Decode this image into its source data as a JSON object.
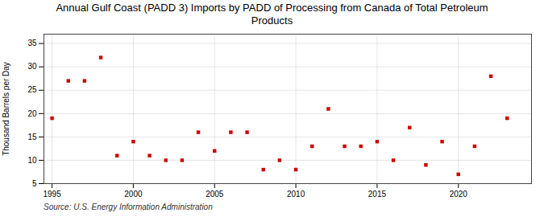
{
  "chart_data": {
    "type": "scatter",
    "title": "Annual Gulf Coast (PADD 3) Imports by PADD of Processing from Canada of Total Petroleum\nProducts",
    "ylabel": "Thousand Barrels per Day",
    "annotations": [
      "Source: U.S. Energy Information Administration"
    ],
    "x": [
      1995,
      1996,
      1997,
      1998,
      1999,
      2000,
      2001,
      2002,
      2003,
      2004,
      2005,
      2006,
      2007,
      2008,
      2009,
      2010,
      2011,
      2012,
      2013,
      2014,
      2015,
      2016,
      2017,
      2018,
      2019,
      2020,
      2021,
      2022,
      2023
    ],
    "values": [
      19,
      27,
      27,
      32,
      11,
      14,
      11,
      10,
      10,
      16,
      12,
      16,
      16,
      8,
      10,
      8,
      13,
      21,
      13,
      13,
      14,
      10,
      17,
      9,
      14,
      7,
      13,
      28,
      19
    ],
    "color": "#cc0000",
    "marker": "square",
    "xlim": [
      1994.5,
      2024.5
    ],
    "ylim": [
      5,
      37
    ],
    "xticks": [
      1995,
      2000,
      2005,
      2010,
      2015,
      2020
    ],
    "yticks": [
      5,
      10,
      15,
      20,
      25,
      30,
      35
    ],
    "grid": true
  }
}
